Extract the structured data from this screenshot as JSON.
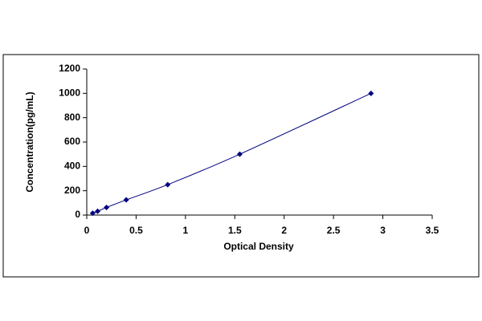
{
  "chart_data": {
    "type": "scatter",
    "x_label": "Optical Density",
    "y_label": "Concentration(pg/mL)",
    "x": [
      0.06,
      0.11,
      0.2,
      0.4,
      0.82,
      1.55,
      2.88
    ],
    "values": [
      15.6,
      31.25,
      62.5,
      125,
      250,
      500,
      1000
    ],
    "color": "#000080",
    "line": true,
    "grid": false,
    "xlim": [
      0,
      3.5
    ],
    "xticks": [
      0,
      0.5,
      1,
      1.5,
      2,
      2.5,
      3,
      3.5
    ],
    "ylim": [
      0,
      1200
    ],
    "yticks": [
      0,
      200,
      400,
      600,
      800,
      1000,
      1200
    ]
  }
}
